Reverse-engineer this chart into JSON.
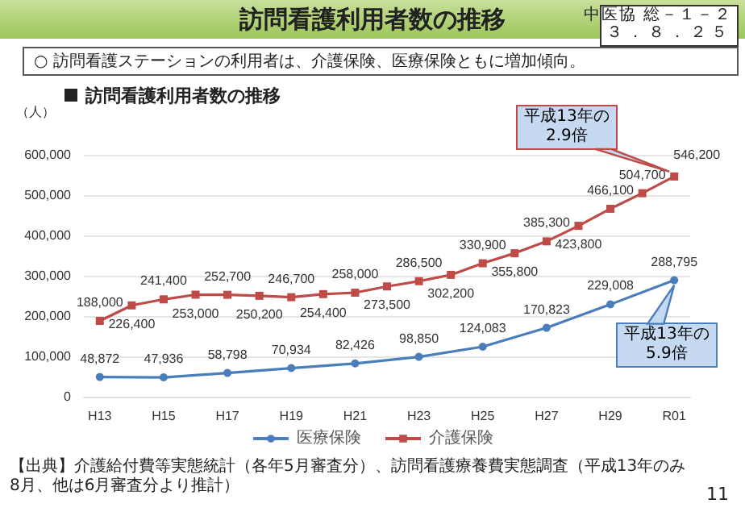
{
  "chart_data": {
    "type": "line",
    "title": "訪問看護利用者数の推移",
    "subtitle": "訪問看護利用者数の推移",
    "ylabel": "（人）",
    "categories": [
      "H13",
      null,
      "H15",
      null,
      "H17",
      null,
      "H19",
      null,
      "H21",
      null,
      "H23",
      null,
      "H25",
      null,
      "H27",
      null,
      "H29",
      null,
      "R01"
    ],
    "series": [
      {
        "name": "医療保険",
        "color": "#4a7ebb",
        "marker": "circle",
        "values": [
          48872,
          null,
          47936,
          null,
          58798,
          null,
          70934,
          null,
          82426,
          null,
          98850,
          null,
          124083,
          null,
          170823,
          null,
          229008,
          null,
          288795
        ],
        "value_labels": [
          "48,872",
          null,
          "47,936",
          null,
          "58,798",
          null,
          "70,934",
          null,
          "82,426",
          null,
          "98,850",
          null,
          "124,083",
          null,
          "170,823",
          null,
          "229,008",
          null,
          "288,795"
        ]
      },
      {
        "name": "介護保険",
        "color": "#be4b48",
        "marker": "square",
        "values": [
          188000,
          226400,
          241400,
          253000,
          252700,
          250200,
          246700,
          254400,
          258000,
          273500,
          286500,
          302200,
          330900,
          355800,
          385300,
          423800,
          466100,
          504700,
          546200
        ],
        "value_labels": [
          "188,000",
          "226,400",
          "241,400",
          "253,000",
          "252,700",
          "250,200",
          "246,700",
          "254,400",
          "258,000",
          "273,500",
          "286,500",
          "302,200",
          "330,900",
          "355,800",
          "385,300",
          "423,800",
          "466,100",
          "504,700",
          "546,200"
        ]
      }
    ],
    "ylim": [
      0,
      600000
    ],
    "yticks": [
      0,
      {
        "value": 100000,
        "label": "100,000"
      },
      {
        "value": 200000,
        "label": "200,000"
      },
      {
        "value": 300000,
        "label": "300,000"
      },
      {
        "value": 400000,
        "label": "400,000"
      },
      {
        "value": 500000,
        "label": "500,000"
      },
      {
        "value": 600000,
        "label": "600,000"
      }
    ],
    "grid": "y",
    "legend": "bottom",
    "annotations": [
      "中医協 総－１－２",
      "３．８．２５",
      "○ 訪問看護ステーションの利用者は、介護保険、医療保険ともに増加傾向。",
      "【出典】介護給付費等実態統計（各年5月審査分）、訪問看護療養費実態調査（平成13年のみ8月、他は6月審査分より推計）",
      "11",
      {
        "text": "平成13年の\n2.9倍",
        "x": "R01",
        "y": 546200
      },
      {
        "text": "平成13年の\n5.9倍",
        "x": "R01",
        "y": 288795
      }
    ]
  }
}
